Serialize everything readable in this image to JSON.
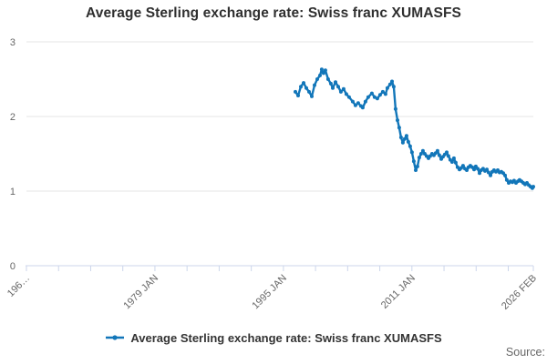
{
  "header": {
    "title": "Average Sterling exchange rate: Swiss franc XUMASFS"
  },
  "legend": {
    "label": "Average Sterling exchange rate: Swiss franc XUMASFS"
  },
  "footer": {
    "source_label": "Source:"
  },
  "colors": {
    "series": "#1276b9",
    "gridline": "#e6e6e6",
    "axis_line": "#ccd6eb",
    "tick": "#ccd6eb",
    "axis_label": "#666666",
    "title_text": "#2f2f2f"
  },
  "chart_data": {
    "type": "line",
    "title": "Average Sterling exchange rate: Swiss franc XUMASFS",
    "xlabel": "",
    "ylabel": "",
    "xlim": [
      1963,
      2026.12
    ],
    "ylim": [
      0,
      3
    ],
    "grid": "horizontal",
    "legend_position": "bottom-center",
    "yticks": [
      0,
      1,
      2,
      3
    ],
    "xticks": [
      {
        "year": 1963,
        "label": "196…"
      },
      {
        "year": 1967,
        "label": ""
      },
      {
        "year": 1971,
        "label": ""
      },
      {
        "year": 1975,
        "label": ""
      },
      {
        "year": 1979,
        "label": "1979 JAN"
      },
      {
        "year": 1983,
        "label": ""
      },
      {
        "year": 1987,
        "label": ""
      },
      {
        "year": 1991,
        "label": ""
      },
      {
        "year": 1995,
        "label": "1995 JAN"
      },
      {
        "year": 1999,
        "label": ""
      },
      {
        "year": 2003,
        "label": ""
      },
      {
        "year": 2007,
        "label": ""
      },
      {
        "year": 2011,
        "label": "2011 JAN"
      },
      {
        "year": 2015,
        "label": ""
      },
      {
        "year": 2019,
        "label": ""
      },
      {
        "year": 2023,
        "label": ""
      },
      {
        "year": 2026.12,
        "label": "2026 FEB"
      }
    ],
    "series": [
      {
        "name": "Average Sterling exchange rate: Swiss franc XUMASFS",
        "points": [
          [
            1996.49,
            2.33
          ],
          [
            1996.83,
            2.28
          ],
          [
            1997.17,
            2.4
          ],
          [
            1997.51,
            2.45
          ],
          [
            1997.85,
            2.38
          ],
          [
            1998.19,
            2.33
          ],
          [
            1998.53,
            2.27
          ],
          [
            1998.87,
            2.42
          ],
          [
            1999.21,
            2.5
          ],
          [
            1999.55,
            2.55
          ],
          [
            1999.77,
            2.63
          ],
          [
            2000.0,
            2.58
          ],
          [
            2000.23,
            2.62
          ],
          [
            2000.57,
            2.5
          ],
          [
            2000.91,
            2.44
          ],
          [
            2001.14,
            2.38
          ],
          [
            2001.48,
            2.46
          ],
          [
            2001.82,
            2.4
          ],
          [
            2002.16,
            2.33
          ],
          [
            2002.5,
            2.37
          ],
          [
            2002.84,
            2.3
          ],
          [
            2003.18,
            2.26
          ],
          [
            2003.63,
            2.2
          ],
          [
            2003.97,
            2.15
          ],
          [
            2004.31,
            2.18
          ],
          [
            2004.65,
            2.14
          ],
          [
            2004.88,
            2.12
          ],
          [
            2005.22,
            2.2
          ],
          [
            2005.56,
            2.26
          ],
          [
            2006.02,
            2.31
          ],
          [
            2006.36,
            2.26
          ],
          [
            2006.7,
            2.24
          ],
          [
            2007.04,
            2.29
          ],
          [
            2007.38,
            2.33
          ],
          [
            2007.72,
            2.3
          ],
          [
            2007.95,
            2.38
          ],
          [
            2008.29,
            2.43
          ],
          [
            2008.52,
            2.47
          ],
          [
            2008.74,
            2.4
          ],
          [
            2008.97,
            2.1
          ],
          [
            2009.2,
            1.95
          ],
          [
            2009.42,
            1.85
          ],
          [
            2009.65,
            1.72
          ],
          [
            2009.88,
            1.65
          ],
          [
            2010.1,
            1.7
          ],
          [
            2010.33,
            1.74
          ],
          [
            2010.56,
            1.66
          ],
          [
            2010.78,
            1.6
          ],
          [
            2011.01,
            1.52
          ],
          [
            2011.24,
            1.4
          ],
          [
            2011.47,
            1.28
          ],
          [
            2011.69,
            1.33
          ],
          [
            2011.92,
            1.45
          ],
          [
            2012.15,
            1.5
          ],
          [
            2012.37,
            1.54
          ],
          [
            2012.6,
            1.5
          ],
          [
            2012.83,
            1.47
          ],
          [
            2013.06,
            1.44
          ],
          [
            2013.28,
            1.47
          ],
          [
            2013.51,
            1.5
          ],
          [
            2013.74,
            1.48
          ],
          [
            2013.96,
            1.51
          ],
          [
            2014.19,
            1.54
          ],
          [
            2014.42,
            1.48
          ],
          [
            2014.65,
            1.43
          ],
          [
            2014.87,
            1.46
          ],
          [
            2015.1,
            1.49
          ],
          [
            2015.33,
            1.52
          ],
          [
            2015.55,
            1.47
          ],
          [
            2015.78,
            1.42
          ],
          [
            2016.01,
            1.39
          ],
          [
            2016.23,
            1.44
          ],
          [
            2016.46,
            1.38
          ],
          [
            2016.69,
            1.32
          ],
          [
            2016.92,
            1.29
          ],
          [
            2017.14,
            1.31
          ],
          [
            2017.37,
            1.34
          ],
          [
            2017.6,
            1.3
          ],
          [
            2017.83,
            1.28
          ],
          [
            2018.05,
            1.32
          ],
          [
            2018.28,
            1.34
          ],
          [
            2018.51,
            1.32
          ],
          [
            2018.74,
            1.29
          ],
          [
            2018.96,
            1.33
          ],
          [
            2019.19,
            1.3
          ],
          [
            2019.42,
            1.24
          ],
          [
            2019.64,
            1.28
          ],
          [
            2019.87,
            1.3
          ],
          [
            2020.1,
            1.27
          ],
          [
            2020.33,
            1.29
          ],
          [
            2020.55,
            1.25
          ],
          [
            2020.78,
            1.21
          ],
          [
            2021.01,
            1.26
          ],
          [
            2021.23,
            1.28
          ],
          [
            2021.46,
            1.26
          ],
          [
            2021.69,
            1.28
          ],
          [
            2021.92,
            1.25
          ],
          [
            2022.14,
            1.26
          ],
          [
            2022.37,
            1.24
          ],
          [
            2022.6,
            1.21
          ],
          [
            2022.82,
            1.15
          ],
          [
            2023.05,
            1.11
          ],
          [
            2023.28,
            1.13
          ],
          [
            2023.51,
            1.12
          ],
          [
            2023.73,
            1.14
          ],
          [
            2023.96,
            1.11
          ],
          [
            2024.19,
            1.13
          ],
          [
            2024.41,
            1.15
          ],
          [
            2024.64,
            1.13
          ],
          [
            2024.87,
            1.11
          ],
          [
            2025.1,
            1.09
          ],
          [
            2025.32,
            1.11
          ],
          [
            2025.55,
            1.08
          ],
          [
            2025.78,
            1.06
          ],
          [
            2026.0,
            1.04
          ],
          [
            2026.12,
            1.06
          ]
        ]
      }
    ]
  }
}
